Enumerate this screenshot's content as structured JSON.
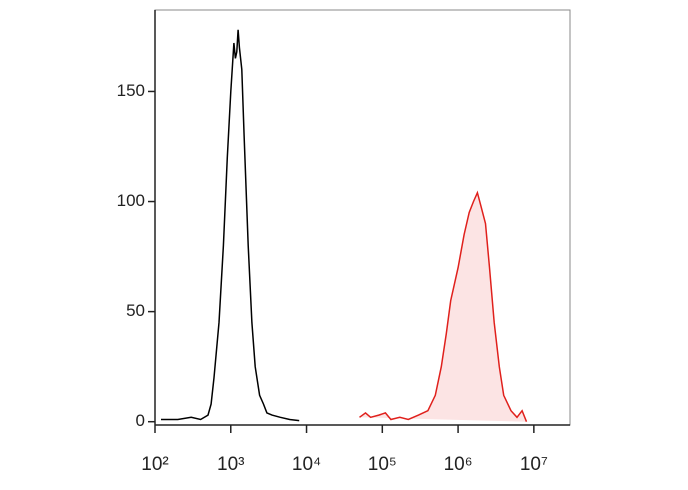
{
  "chart_data": {
    "type": "histogram-overlay",
    "xscale": "log",
    "xlim": [
      100,
      30000000
    ],
    "ylim": [
      -1.5,
      187
    ],
    "yticks": [
      0,
      50,
      100,
      150
    ],
    "xticks": [
      {
        "value": 100,
        "label": "10²"
      },
      {
        "value": 1000,
        "label": "10³"
      },
      {
        "value": 10000,
        "label": "10⁴"
      },
      {
        "value": 100000,
        "label": "10⁵"
      },
      {
        "value": 1000000,
        "label": "10⁶"
      },
      {
        "value": 10000000,
        "label": "10⁷"
      }
    ],
    "series": [
      {
        "color": "#000000",
        "fill": "none",
        "x": [
          120,
          200,
          300,
          400,
          500,
          550,
          600,
          700,
          800,
          900,
          1000,
          1100,
          1150,
          1200,
          1250,
          1300,
          1400,
          1500,
          1700,
          1900,
          2100,
          2400,
          2700,
          3000,
          3500,
          4500,
          6000,
          8000
        ],
        "values": [
          1,
          1,
          2,
          1,
          3,
          8,
          20,
          45,
          80,
          120,
          150,
          172,
          165,
          168,
          178,
          170,
          160,
          130,
          80,
          45,
          25,
          12,
          8,
          4,
          3,
          2,
          1,
          0.5
        ]
      },
      {
        "color": "#e0201c",
        "fill": "#fce4e4",
        "x": [
          50000,
          60000,
          70000,
          90000,
          110000,
          130000,
          170000,
          220000,
          300000,
          400000,
          500000,
          600000,
          700000,
          800000,
          1000000,
          1200000,
          1400000,
          1600000,
          1800000,
          2000000,
          2300000,
          2600000,
          3000000,
          3500000,
          4000000,
          5000000,
          6000000,
          7000000,
          8000000
        ],
        "values": [
          2,
          4,
          2,
          3,
          4,
          1,
          2,
          1,
          3,
          5,
          12,
          25,
          40,
          55,
          70,
          85,
          95,
          100,
          104,
          98,
          90,
          70,
          45,
          25,
          12,
          5,
          2,
          5,
          0
        ]
      }
    ]
  }
}
